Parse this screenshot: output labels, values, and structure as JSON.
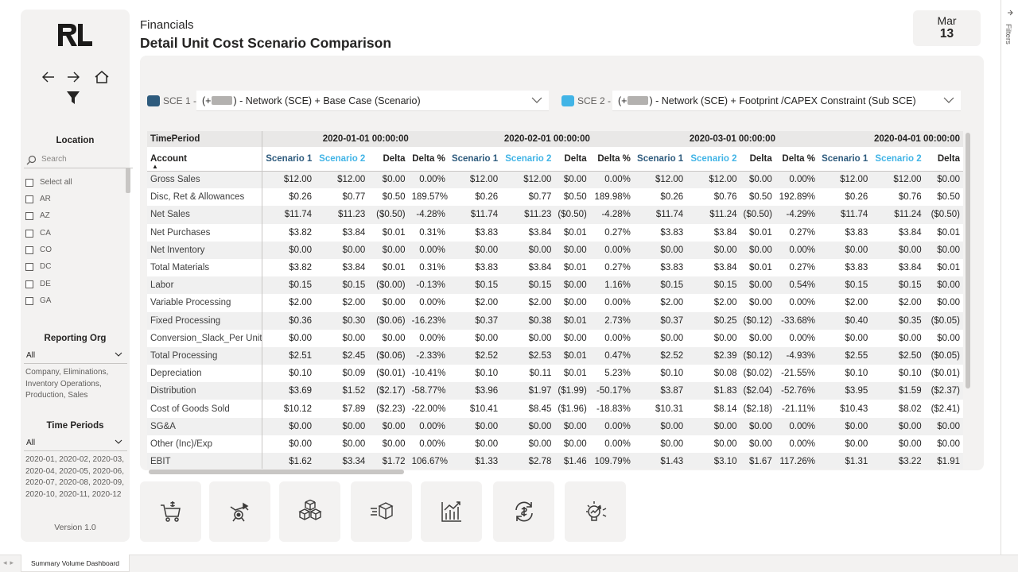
{
  "header": {
    "subtitle": "Financials",
    "title": "Detail Unit Cost Scenario Comparison",
    "date_month": "Mar",
    "date_day": "13"
  },
  "sidebar": {
    "logo_text": "RL",
    "location": {
      "title": "Location",
      "search_placeholder": "Search",
      "items": [
        "Select all",
        "AR",
        "AZ",
        "CA",
        "CO",
        "DC",
        "DE",
        "GA"
      ]
    },
    "reporting_org": {
      "title": "Reporting Org",
      "value": "All",
      "description": "Company, Eliminations, Inventory Operations, Production, Sales"
    },
    "time_periods": {
      "title": "Time Periods",
      "value": "All",
      "description": "2020-01, 2020-02, 2020-03, 2020-04, 2020-05, 2020-06, 2020-07, 2020-08, 2020-09, 2020-10, 2020-11, 2020-12"
    },
    "version": "Version 1.0"
  },
  "scenarios": {
    "sce1": {
      "label": "SCE 1 -",
      "prefix": "(+",
      "suffix": ") - Network (SCE) + Base Case (Scenario)",
      "color": "#2e5b7d"
    },
    "sce2": {
      "label": "SCE 2 -",
      "prefix": "(+",
      "suffix": ") - Network (SCE) + Footprint /CAPEX Constraint (Sub SCE)",
      "color": "#41b4e6"
    }
  },
  "matrix": {
    "timeperiod_label": "TimePeriod",
    "account_label": "Account",
    "periods": [
      "2020-01-01 00:00:00",
      "2020-02-01 00:00:00",
      "2020-03-01 00:00:00",
      "2020-04-01 00:00:00"
    ],
    "column_headers": [
      "Scenario 1",
      "Scenario 2",
      "Delta",
      "Delta %"
    ],
    "rows": [
      {
        "account": "Gross Sales",
        "values": [
          "$12.00",
          "$12.00",
          "$0.00",
          "0.00%",
          "$12.00",
          "$12.00",
          "$0.00",
          "0.00%",
          "$12.00",
          "$12.00",
          "$0.00",
          "0.00%",
          "$12.00",
          "$12.00",
          "$0.00"
        ]
      },
      {
        "account": "Disc, Ret & Allowances",
        "values": [
          "$0.26",
          "$0.77",
          "$0.50",
          "189.57%",
          "$0.26",
          "$0.77",
          "$0.50",
          "189.98%",
          "$0.26",
          "$0.76",
          "$0.50",
          "192.89%",
          "$0.26",
          "$0.76",
          "$0.50"
        ]
      },
      {
        "account": "Net Sales",
        "values": [
          "$11.74",
          "$11.23",
          "($0.50)",
          "-4.28%",
          "$11.74",
          "$11.23",
          "($0.50)",
          "-4.28%",
          "$11.74",
          "$11.24",
          "($0.50)",
          "-4.29%",
          "$11.74",
          "$11.24",
          "($0.50)"
        ]
      },
      {
        "account": "Net Purchases",
        "values": [
          "$3.82",
          "$3.84",
          "$0.01",
          "0.31%",
          "$3.83",
          "$3.84",
          "$0.01",
          "0.27%",
          "$3.83",
          "$3.84",
          "$0.01",
          "0.27%",
          "$3.83",
          "$3.84",
          "$0.01"
        ]
      },
      {
        "account": "Net Inventory",
        "values": [
          "$0.00",
          "$0.00",
          "$0.00",
          "0.00%",
          "$0.00",
          "$0.00",
          "$0.00",
          "0.00%",
          "$0.00",
          "$0.00",
          "$0.00",
          "0.00%",
          "$0.00",
          "$0.00",
          "$0.00"
        ]
      },
      {
        "account": "Total Materials",
        "values": [
          "$3.82",
          "$3.84",
          "$0.01",
          "0.31%",
          "$3.83",
          "$3.84",
          "$0.01",
          "0.27%",
          "$3.83",
          "$3.84",
          "$0.01",
          "0.27%",
          "$3.83",
          "$3.84",
          "$0.01"
        ]
      },
      {
        "account": "Labor",
        "values": [
          "$0.15",
          "$0.15",
          "($0.00)",
          "-0.13%",
          "$0.15",
          "$0.15",
          "$0.00",
          "1.16%",
          "$0.15",
          "$0.15",
          "$0.00",
          "0.54%",
          "$0.15",
          "$0.15",
          "$0.00"
        ]
      },
      {
        "account": "Variable Processing",
        "values": [
          "$2.00",
          "$2.00",
          "$0.00",
          "0.00%",
          "$2.00",
          "$2.00",
          "$0.00",
          "0.00%",
          "$2.00",
          "$2.00",
          "$0.00",
          "0.00%",
          "$2.00",
          "$2.00",
          "$0.00"
        ]
      },
      {
        "account": "Fixed Processing",
        "values": [
          "$0.36",
          "$0.30",
          "($0.06)",
          "-16.23%",
          "$0.37",
          "$0.38",
          "$0.01",
          "2.73%",
          "$0.37",
          "$0.25",
          "($0.12)",
          "-33.68%",
          "$0.40",
          "$0.35",
          "($0.05)"
        ]
      },
      {
        "account": "Conversion_Slack_Per Unit",
        "values": [
          "$0.00",
          "$0.00",
          "$0.00",
          "0.00%",
          "$0.00",
          "$0.00",
          "$0.00",
          "0.00%",
          "$0.00",
          "$0.00",
          "$0.00",
          "0.00%",
          "$0.00",
          "$0.00",
          "$0.00"
        ]
      },
      {
        "account": "Total Processing",
        "values": [
          "$2.51",
          "$2.45",
          "($0.06)",
          "-2.33%",
          "$2.52",
          "$2.53",
          "$0.01",
          "0.47%",
          "$2.52",
          "$2.39",
          "($0.12)",
          "-4.93%",
          "$2.55",
          "$2.50",
          "($0.05)"
        ]
      },
      {
        "account": "Depreciation",
        "values": [
          "$0.10",
          "$0.09",
          "($0.01)",
          "-10.41%",
          "$0.10",
          "$0.11",
          "$0.01",
          "5.23%",
          "$0.10",
          "$0.08",
          "($0.02)",
          "-21.55%",
          "$0.10",
          "$0.10",
          "($0.01)"
        ]
      },
      {
        "account": "Distribution",
        "values": [
          "$3.69",
          "$1.52",
          "($2.17)",
          "-58.77%",
          "$3.96",
          "$1.97",
          "($1.99)",
          "-50.17%",
          "$3.87",
          "$1.83",
          "($2.04)",
          "-52.76%",
          "$3.95",
          "$1.59",
          "($2.37)"
        ]
      },
      {
        "account": "Cost of Goods Sold",
        "values": [
          "$10.12",
          "$7.89",
          "($2.23)",
          "-22.00%",
          "$10.41",
          "$8.45",
          "($1.96)",
          "-18.83%",
          "$10.31",
          "$8.14",
          "($2.18)",
          "-21.11%",
          "$10.43",
          "$8.02",
          "($2.41)"
        ]
      },
      {
        "account": "SG&A",
        "values": [
          "$0.00",
          "$0.00",
          "$0.00",
          "0.00%",
          "$0.00",
          "$0.00",
          "$0.00",
          "0.00%",
          "$0.00",
          "$0.00",
          "$0.00",
          "0.00%",
          "$0.00",
          "$0.00",
          "$0.00"
        ]
      },
      {
        "account": "Other (Inc)/Exp",
        "values": [
          "$0.00",
          "$0.00",
          "$0.00",
          "0.00%",
          "$0.00",
          "$0.00",
          "$0.00",
          "0.00%",
          "$0.00",
          "$0.00",
          "$0.00",
          "0.00%",
          "$0.00",
          "$0.00",
          "$0.00"
        ]
      },
      {
        "account": "EBIT",
        "values": [
          "$1.62",
          "$3.34",
          "$1.72",
          "106.67%",
          "$1.33",
          "$2.78",
          "$1.46",
          "109.79%",
          "$1.43",
          "$3.10",
          "$1.67",
          "117.26%",
          "$1.31",
          "$3.22",
          "$1.91"
        ]
      }
    ]
  },
  "nav_buttons": [
    "cart-dollar-icon",
    "truck-dolly-icon",
    "boxes-icon",
    "fast-delivery-box-icon",
    "chart-growth-icon",
    "refresh-dollar-icon",
    "idea-growth-icon"
  ],
  "filters_pane": {
    "label": "Filters"
  },
  "tabs": {
    "active": "Summary Volume Dashboard"
  }
}
